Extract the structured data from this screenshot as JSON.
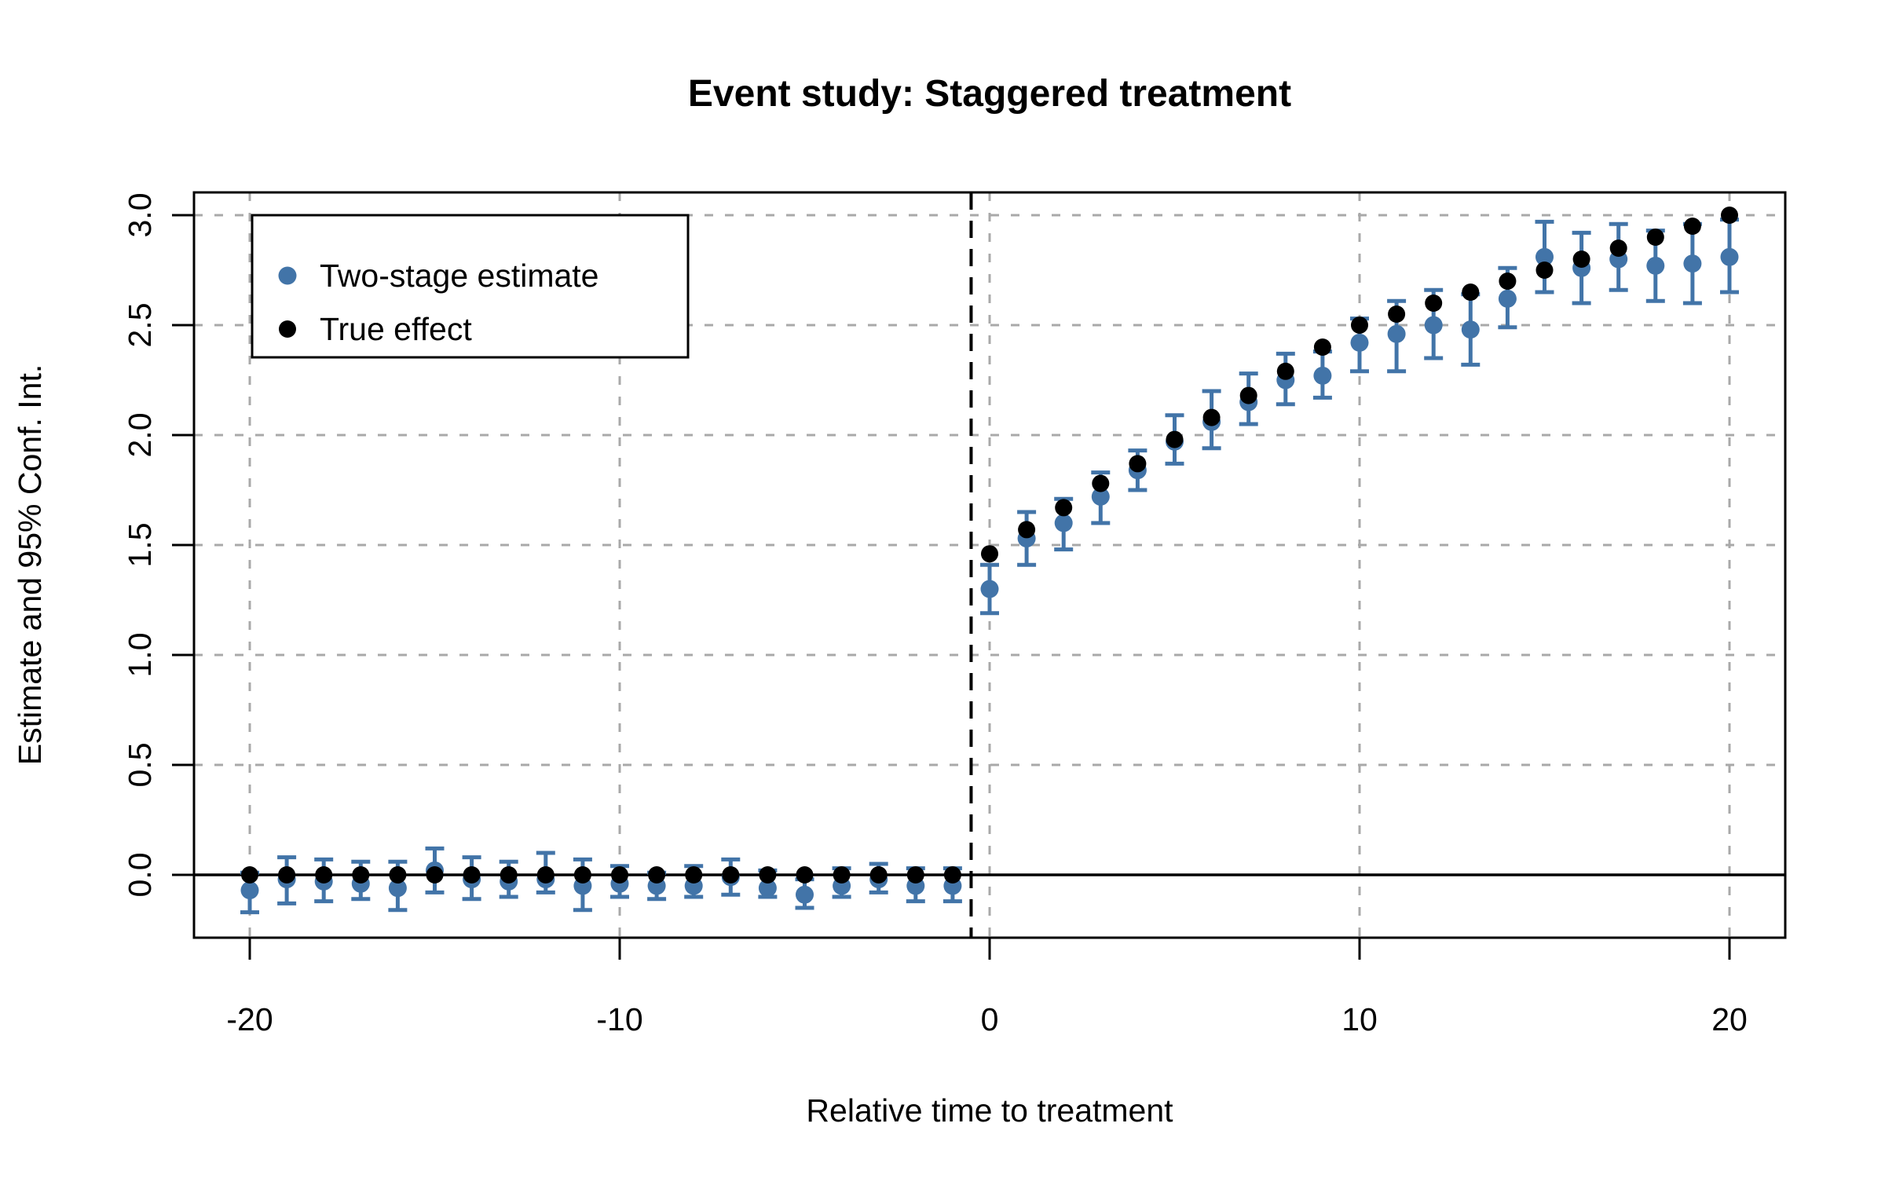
{
  "title": "Event study: Staggered treatment",
  "axes": {
    "x_title": "Relative time to treatment",
    "y_title": "Estimate and 95% Conf. Int."
  },
  "legend": {
    "items": [
      {
        "label": "Two-stage estimate",
        "color": "#4274A8"
      },
      {
        "label": "True effect",
        "color": "#000000"
      }
    ]
  },
  "colors": {
    "two_stage": "#4274A8",
    "true_effect": "#000000",
    "grid": "#A9A9A9",
    "axis": "#000000",
    "background": "#FFFFFF"
  },
  "chart_data": {
    "type": "scatter",
    "title": "Event study: Staggered treatment",
    "xlabel": "Relative time to treatment",
    "ylabel": "Estimate and 95% Conf. Int.",
    "xlim": [
      -21.6,
      21.6
    ],
    "ylim": [
      -0.29,
      3.1
    ],
    "grid": true,
    "x_ticks": [
      -20,
      -10,
      0,
      10,
      20
    ],
    "x_tick_labels": [
      "-20",
      "-10",
      "0",
      "10",
      "20"
    ],
    "y_ticks": [
      0.0,
      0.5,
      1.0,
      1.5,
      2.0,
      2.5,
      3.0
    ],
    "y_tick_labels": [
      "0.0",
      "0.5",
      "1.0",
      "1.5",
      "2.0",
      "2.5",
      "3.0"
    ],
    "legend_position": "top-left",
    "reference_lines": {
      "horizontal_solid_y": 0,
      "vertical_dashed_x": -0.5
    },
    "x": [
      -20,
      -19,
      -18,
      -17,
      -16,
      -15,
      -14,
      -13,
      -12,
      -11,
      -10,
      -9,
      -8,
      -7,
      -6,
      -5,
      -4,
      -3,
      -2,
      -1,
      0,
      1,
      2,
      3,
      4,
      5,
      6,
      7,
      8,
      9,
      10,
      11,
      12,
      13,
      14,
      15,
      16,
      17,
      18,
      19,
      20
    ],
    "series": [
      {
        "name": "Two-stage estimate",
        "style": "points-with-error-bars",
        "color": "#4274A8",
        "est": [
          -0.07,
          -0.02,
          -0.03,
          -0.04,
          -0.06,
          0.02,
          -0.02,
          -0.03,
          -0.02,
          -0.05,
          -0.04,
          -0.05,
          -0.05,
          -0.01,
          -0.06,
          -0.09,
          -0.05,
          -0.02,
          -0.05,
          -0.05,
          1.3,
          1.53,
          1.6,
          1.72,
          1.84,
          1.97,
          2.06,
          2.15,
          2.25,
          2.27,
          2.42,
          2.46,
          2.5,
          2.48,
          2.62,
          2.81,
          2.76,
          2.8,
          2.77,
          2.78,
          2.81
        ],
        "ci_low": [
          -0.17,
          -0.13,
          -0.12,
          -0.11,
          -0.16,
          -0.08,
          -0.11,
          -0.1,
          -0.08,
          -0.16,
          -0.1,
          -0.11,
          -0.1,
          -0.09,
          -0.1,
          -0.15,
          -0.1,
          -0.08,
          -0.12,
          -0.12,
          1.19,
          1.41,
          1.48,
          1.6,
          1.75,
          1.87,
          1.94,
          2.05,
          2.14,
          2.17,
          2.29,
          2.29,
          2.35,
          2.32,
          2.49,
          2.65,
          2.6,
          2.66,
          2.61,
          2.6,
          2.65
        ],
        "ci_high": [
          0.01,
          0.08,
          0.07,
          0.06,
          0.06,
          0.12,
          0.08,
          0.06,
          0.1,
          0.07,
          0.04,
          0.01,
          0.04,
          0.07,
          0.02,
          -0.02,
          0.03,
          0.05,
          0.03,
          0.03,
          1.41,
          1.65,
          1.71,
          1.83,
          1.93,
          2.09,
          2.2,
          2.28,
          2.37,
          2.38,
          2.53,
          2.61,
          2.66,
          2.64,
          2.76,
          2.97,
          2.92,
          2.96,
          2.93,
          2.96,
          2.98
        ]
      },
      {
        "name": "True effect",
        "style": "points",
        "color": "#000000",
        "values": [
          0,
          0,
          0,
          0,
          0,
          0,
          0,
          0,
          0,
          0,
          0,
          0,
          0,
          0,
          0,
          0,
          0,
          0,
          0,
          0,
          1.46,
          1.57,
          1.67,
          1.78,
          1.87,
          1.98,
          2.08,
          2.18,
          2.29,
          2.4,
          2.5,
          2.55,
          2.6,
          2.65,
          2.7,
          2.75,
          2.8,
          2.85,
          2.9,
          2.95,
          3.0
        ]
      }
    ]
  }
}
